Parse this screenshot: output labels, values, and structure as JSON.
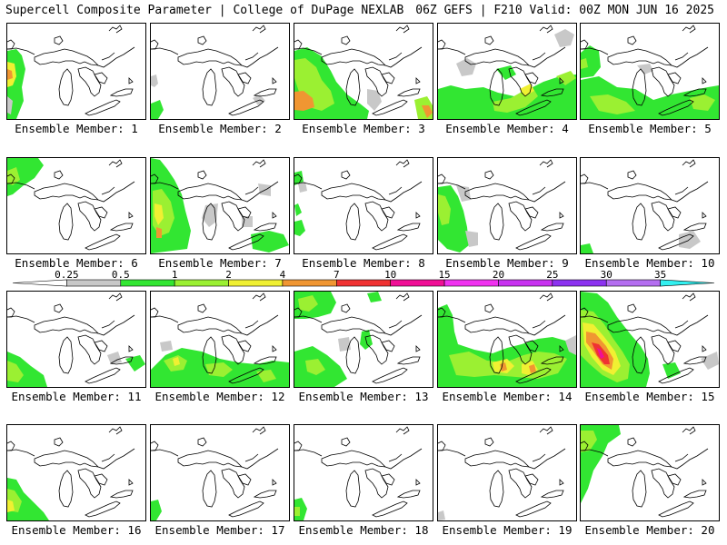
{
  "header": {
    "title": "Supercell Composite Parameter | College of DuPage NEXLAB",
    "run_info": "06Z GEFS | F210 Valid: 00Z MON JUN 16 2025"
  },
  "legend": {
    "ticks": [
      "0.25",
      "0.5",
      "1",
      "2",
      "4",
      "7",
      "10",
      "15",
      "20",
      "25",
      "30",
      "35"
    ],
    "colors": [
      "#c8c8c8",
      "#32e632",
      "#9bf032",
      "#f0f032",
      "#f09632",
      "#f03232",
      "#f00f96",
      "#f032f0",
      "#c832f0",
      "#8c32f0",
      "#b46ef0",
      "#32f0f0"
    ],
    "under_color": "#ffffff"
  },
  "colors": {
    "low": "#c8c8c8",
    "green": "#32e632",
    "lime": "#9bf032",
    "yellow": "#f0f032",
    "orange": "#f09632",
    "red": "#f03232",
    "magenta": "#f00f96"
  },
  "members": [
    {
      "label": "Ensemble Member: 1"
    },
    {
      "label": "Ensemble Member: 2"
    },
    {
      "label": "Ensemble Member: 3"
    },
    {
      "label": "Ensemble Member: 4"
    },
    {
      "label": "Ensemble Member: 5"
    },
    {
      "label": "Ensemble Member: 6"
    },
    {
      "label": "Ensemble Member: 7"
    },
    {
      "label": "Ensemble Member: 8"
    },
    {
      "label": "Ensemble Member: 9"
    },
    {
      "label": "Ensemble Member: 10"
    },
    {
      "label": "Ensemble Member: 11"
    },
    {
      "label": "Ensemble Member: 12"
    },
    {
      "label": "Ensemble Member: 13"
    },
    {
      "label": "Ensemble Member: 14"
    },
    {
      "label": "Ensemble Member: 15"
    },
    {
      "label": "Ensemble Member: 16"
    },
    {
      "label": "Ensemble Member: 17"
    },
    {
      "label": "Ensemble Member: 18"
    },
    {
      "label": "Ensemble Member: 19"
    },
    {
      "label": "Ensemble Member: 20"
    }
  ]
}
